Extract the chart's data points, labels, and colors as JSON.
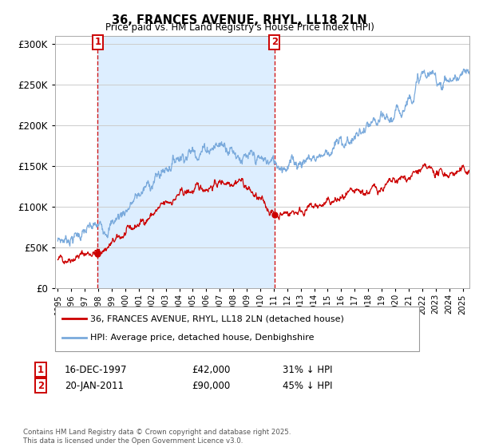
{
  "title": "36, FRANCES AVENUE, RHYL, LL18 2LN",
  "subtitle": "Price paid vs. HM Land Registry's House Price Index (HPI)",
  "legend_line1": "36, FRANCES AVENUE, RHYL, LL18 2LN (detached house)",
  "legend_line2": "HPI: Average price, detached house, Denbighshire",
  "sale1_date": "16-DEC-1997",
  "sale1_price": "£42,000",
  "sale1_pct": "31% ↓ HPI",
  "sale2_date": "20-JAN-2011",
  "sale2_price": "£90,000",
  "sale2_pct": "45% ↓ HPI",
  "copyright": "Contains HM Land Registry data © Crown copyright and database right 2025.\nThis data is licensed under the Open Government Licence v3.0.",
  "hpi_color": "#7aaadc",
  "price_color": "#cc0000",
  "shade_color": "#ddeeff",
  "vline_color": "#cc0000",
  "background_color": "#ffffff",
  "grid_color": "#cccccc",
  "sale1_year": 1997.96,
  "sale2_year": 2011.05,
  "sale1_price_val": 42000,
  "sale2_price_val": 90000,
  "xmin": 1995,
  "xmax": 2025.5,
  "ylim": [
    0,
    310000
  ],
  "yticks": [
    0,
    50000,
    100000,
    150000,
    200000,
    250000,
    300000
  ],
  "xticks": [
    1995,
    1996,
    1997,
    1998,
    1999,
    2000,
    2001,
    2002,
    2003,
    2004,
    2005,
    2006,
    2007,
    2008,
    2009,
    2010,
    2011,
    2012,
    2013,
    2014,
    2015,
    2016,
    2017,
    2018,
    2019,
    2020,
    2021,
    2022,
    2023,
    2024,
    2025
  ]
}
